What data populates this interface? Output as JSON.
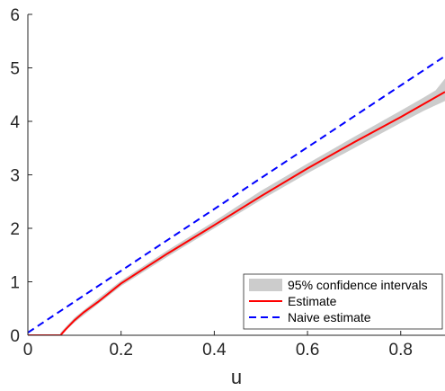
{
  "chart_data": {
    "type": "line",
    "title": "",
    "xlabel": "u",
    "ylabel": "",
    "xlim": [
      0,
      0.895
    ],
    "ylim": [
      0,
      6
    ],
    "x_ticks": [
      0,
      0.2,
      0.4,
      0.6,
      0.8
    ],
    "x_tick_labels": [
      "0",
      "0.2",
      "0.4",
      "0.6",
      "0.8"
    ],
    "y_ticks": [
      0,
      1,
      2,
      3,
      4,
      5,
      6
    ],
    "y_tick_labels": [
      "0",
      "1",
      "2",
      "3",
      "4",
      "5",
      "6"
    ],
    "grid": false,
    "legend_position": "bottom-right",
    "series": [
      {
        "name": "95% confidence intervals",
        "kind": "band",
        "color": "#cccccc",
        "x": [
          0.07,
          0.1,
          0.15,
          0.2,
          0.3,
          0.4,
          0.5,
          0.6,
          0.7,
          0.8,
          0.85,
          0.875,
          0.895
        ],
        "lower": [
          0.0,
          0.24,
          0.58,
          0.92,
          1.47,
          2.0,
          2.53,
          3.03,
          3.5,
          3.97,
          4.2,
          4.3,
          4.38
        ],
        "upper": [
          0.05,
          0.33,
          0.68,
          1.02,
          1.59,
          2.13,
          2.7,
          3.21,
          3.71,
          4.2,
          4.45,
          4.58,
          4.8
        ]
      },
      {
        "name": "Estimate",
        "kind": "line",
        "color": "#ff0000",
        "dash": "solid",
        "x": [
          0,
          0.07,
          0.08,
          0.1,
          0.12,
          0.15,
          0.2,
          0.3,
          0.4,
          0.5,
          0.6,
          0.7,
          0.8,
          0.895
        ],
        "y": [
          0,
          0,
          0.1,
          0.28,
          0.43,
          0.62,
          0.97,
          1.53,
          2.06,
          2.6,
          3.12,
          3.61,
          4.08,
          4.55
        ]
      },
      {
        "name": "Naive estimate",
        "kind": "line",
        "color": "#0000ff",
        "dash": "dashed",
        "x": [
          0,
          0.895
        ],
        "y": [
          0.05,
          5.22
        ]
      }
    ]
  }
}
